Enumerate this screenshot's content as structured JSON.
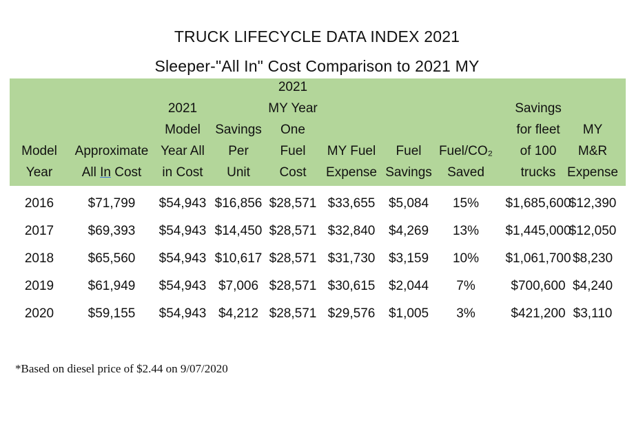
{
  "title": "TRUCK LIFECYCLE DATA INDEX 2021",
  "subtitle": "Sleeper-\"All In\" Cost Comparison to 2021 MY",
  "header_color": "#b3d69a",
  "columns": [
    {
      "lines": [
        "Model",
        "Year"
      ]
    },
    {
      "lines": [
        "Approximate",
        "All In Cost"
      ]
    },
    {
      "lines": [
        "2021",
        "Model",
        "Year All",
        "in Cost"
      ]
    },
    {
      "lines": [
        "Savings",
        "Per",
        "Unit"
      ]
    },
    {
      "lines": [
        "2021",
        "MY Year",
        "One",
        "Fuel",
        "Cost"
      ]
    },
    {
      "lines": [
        "MY Fuel",
        "Expense"
      ]
    },
    {
      "lines": [
        "Fuel",
        "Savings"
      ]
    },
    {
      "lines": [
        "Fuel/CO₂",
        "Saved"
      ]
    },
    {
      "lines": [
        "Savings",
        "for fleet",
        "of 100",
        "trucks"
      ]
    },
    {
      "lines": [
        "MY",
        "M&R",
        "Expense"
      ]
    }
  ],
  "rows": [
    [
      "2016",
      "$71,799",
      "$54,943",
      "$16,856",
      "$28,571",
      "$33,655",
      "$5,084",
      "15%",
      "$1,685,600",
      "$12,390"
    ],
    [
      "2017",
      "$69,393",
      "$54,943",
      "$14,450",
      "$28,571",
      "$32,840",
      "$4,269",
      "13%",
      "$1,445,000",
      "$12,050"
    ],
    [
      "2018",
      "$65,560",
      "$54,943",
      "$10,617",
      "$28,571",
      "$31,730",
      "$3,159",
      "10%",
      "$1,061,700",
      "$8,230"
    ],
    [
      "2019",
      "$61,949",
      "$54,943",
      "$7,006",
      "$28,571",
      "$30,615",
      "$2,044",
      "7%",
      "$700,600",
      "$4,240"
    ],
    [
      "2020",
      "$59,155",
      "$54,943",
      "$4,212",
      "$28,571",
      "$29,576",
      "$1,005",
      "3%",
      "$421,200",
      "$3,110"
    ]
  ],
  "footnote": "*Based on diesel price of $2.44 on 9/07/2020"
}
